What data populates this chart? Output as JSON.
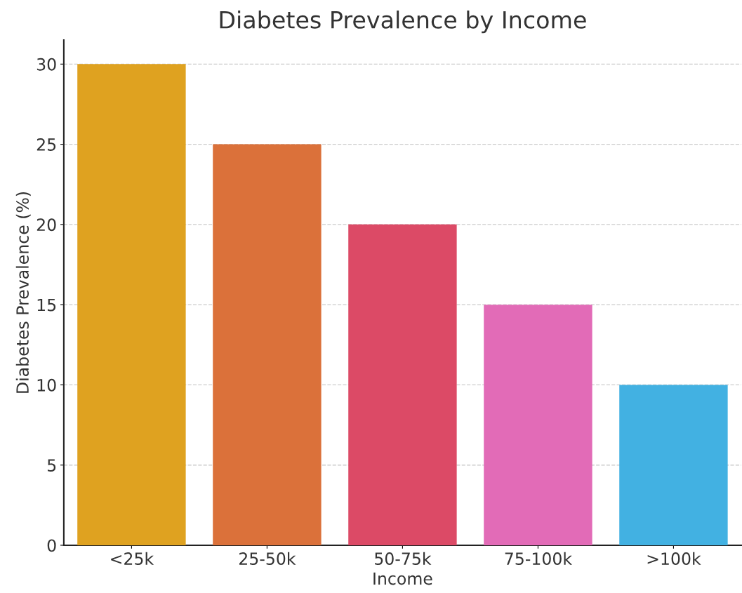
{
  "chart_data": {
    "type": "bar",
    "title": "Diabetes Prevalence by Income",
    "xlabel": "Income",
    "ylabel": "Diabetes Prevalence (%)",
    "categories": [
      "<25k",
      "25-50k",
      "50-75k",
      "75-100k",
      ">100k"
    ],
    "values": [
      30,
      25,
      20,
      15,
      10
    ],
    "colors": [
      "#dfa220",
      "#db713a",
      "#dc4a66",
      "#e26bb7",
      "#42b1e2"
    ],
    "ylim": [
      0,
      31.5
    ],
    "yticks": [
      0,
      5,
      10,
      15,
      20,
      25,
      30
    ],
    "grid": "y",
    "line_style": "dashed"
  }
}
